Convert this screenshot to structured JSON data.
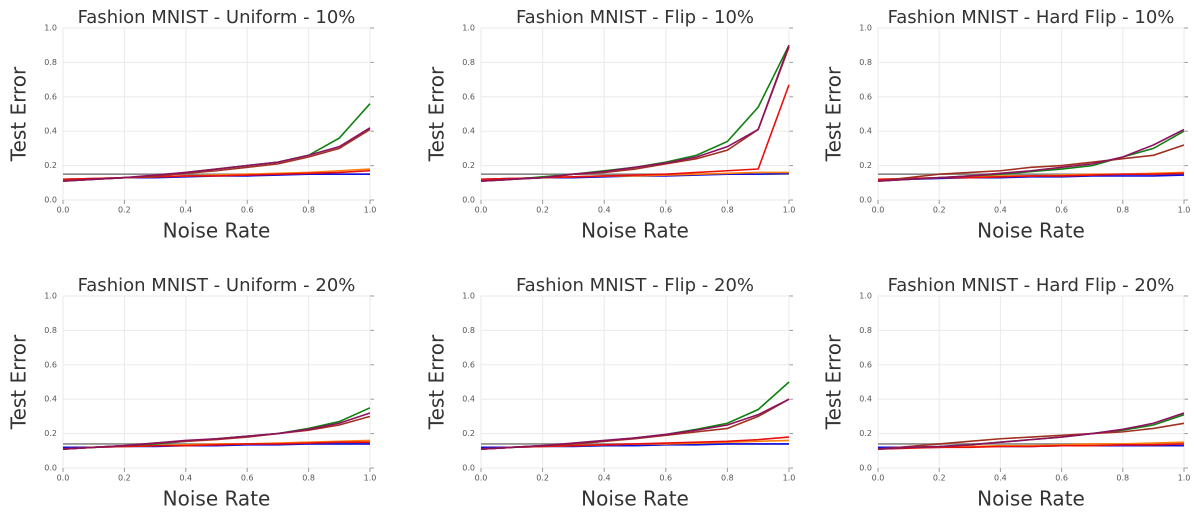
{
  "chart_data": [
    {
      "type": "line",
      "title": "Fashion MNIST - Uniform - 10%",
      "x_label": "Noise Rate",
      "y_label": "Test Error",
      "grid": true,
      "x": [
        0,
        0.1,
        0.2,
        0.3,
        0.4,
        0.5,
        0.6,
        0.7,
        0.8,
        0.9,
        1.0
      ],
      "xlim": [
        0,
        1
      ],
      "ylim": [
        0,
        1
      ],
      "xticks": [
        {
          "value": 0,
          "label": "0.0"
        },
        {
          "value": 0.2,
          "label": "0.2"
        },
        {
          "value": 0.4,
          "label": "0.4"
        },
        {
          "value": 0.6,
          "label": "0.6"
        },
        {
          "value": 0.8,
          "label": "0.8"
        },
        {
          "value": 1,
          "label": "1.0"
        }
      ],
      "yticks": [
        {
          "value": 0,
          "label": "0.0"
        },
        {
          "value": 0.2,
          "label": "0.2"
        },
        {
          "value": 0.4,
          "label": "0.4"
        },
        {
          "value": 0.6,
          "label": "0.6"
        },
        {
          "value": 0.8,
          "label": "0.8"
        },
        {
          "value": 1,
          "label": "1.0"
        }
      ],
      "series": [
        {
          "color": "#888888",
          "values": [
            0.15,
            0.15,
            0.15,
            0.15,
            0.15,
            0.15,
            0.15,
            0.15,
            0.15,
            0.15,
            0.15
          ]
        },
        {
          "color": "#1010e0",
          "values": [
            0.12,
            0.125,
            0.13,
            0.13,
            0.135,
            0.14,
            0.14,
            0.145,
            0.15,
            0.15,
            0.15
          ]
        },
        {
          "color": "#ff7f0e",
          "values": [
            0.12,
            0.125,
            0.13,
            0.135,
            0.14,
            0.145,
            0.15,
            0.155,
            0.16,
            0.17,
            0.18
          ]
        },
        {
          "color": "#e8100e",
          "values": [
            0.12,
            0.125,
            0.13,
            0.135,
            0.14,
            0.14,
            0.145,
            0.15,
            0.155,
            0.16,
            0.17
          ]
        },
        {
          "color": "#108010",
          "values": [
            0.11,
            0.12,
            0.13,
            0.14,
            0.16,
            0.18,
            0.2,
            0.22,
            0.26,
            0.36,
            0.56
          ]
        },
        {
          "color": "#a03020",
          "values": [
            0.11,
            0.12,
            0.13,
            0.14,
            0.155,
            0.17,
            0.19,
            0.21,
            0.25,
            0.3,
            0.41
          ]
        },
        {
          "color": "#901060",
          "values": [
            0.11,
            0.12,
            0.13,
            0.145,
            0.16,
            0.18,
            0.2,
            0.22,
            0.26,
            0.31,
            0.42
          ]
        }
      ]
    },
    {
      "type": "line",
      "title": "Fashion MNIST - Flip - 10%",
      "x_label": "Noise Rate",
      "y_label": "Test Error",
      "grid": true,
      "x": [
        0,
        0.1,
        0.2,
        0.3,
        0.4,
        0.5,
        0.6,
        0.7,
        0.8,
        0.9,
        1.0
      ],
      "xlim": [
        0,
        1
      ],
      "ylim": [
        0,
        1
      ],
      "xticks": [
        {
          "value": 0,
          "label": "0.0"
        },
        {
          "value": 0.2,
          "label": "0.2"
        },
        {
          "value": 0.4,
          "label": "0.4"
        },
        {
          "value": 0.6,
          "label": "0.6"
        },
        {
          "value": 0.8,
          "label": "0.8"
        },
        {
          "value": 1,
          "label": "1.0"
        }
      ],
      "yticks": [
        {
          "value": 0,
          "label": "0.0"
        },
        {
          "value": 0.2,
          "label": "0.2"
        },
        {
          "value": 0.4,
          "label": "0.4"
        },
        {
          "value": 0.6,
          "label": "0.6"
        },
        {
          "value": 0.8,
          "label": "0.8"
        },
        {
          "value": 1,
          "label": "1.0"
        }
      ],
      "series": [
        {
          "color": "#888888",
          "values": [
            0.15,
            0.15,
            0.15,
            0.15,
            0.15,
            0.15,
            0.15,
            0.15,
            0.15,
            0.15,
            0.15
          ]
        },
        {
          "color": "#1010e0",
          "values": [
            0.12,
            0.125,
            0.13,
            0.13,
            0.135,
            0.14,
            0.14,
            0.145,
            0.15,
            0.15,
            0.155
          ]
        },
        {
          "color": "#ff7f0e",
          "values": [
            0.12,
            0.125,
            0.13,
            0.135,
            0.14,
            0.14,
            0.145,
            0.15,
            0.155,
            0.16,
            0.16
          ]
        },
        {
          "color": "#e8100e",
          "values": [
            0.12,
            0.125,
            0.13,
            0.135,
            0.14,
            0.145,
            0.15,
            0.16,
            0.17,
            0.18,
            0.67
          ]
        },
        {
          "color": "#108010",
          "values": [
            0.11,
            0.12,
            0.135,
            0.15,
            0.17,
            0.19,
            0.22,
            0.26,
            0.34,
            0.54,
            0.9
          ]
        },
        {
          "color": "#a03020",
          "values": [
            0.11,
            0.12,
            0.13,
            0.15,
            0.16,
            0.18,
            0.21,
            0.24,
            0.29,
            0.41,
            0.89
          ]
        },
        {
          "color": "#901060",
          "values": [
            0.11,
            0.12,
            0.13,
            0.15,
            0.165,
            0.19,
            0.215,
            0.25,
            0.31,
            0.41,
            0.9
          ]
        }
      ]
    },
    {
      "type": "line",
      "title": "Fashion MNIST - Hard Flip - 10%",
      "x_label": "Noise Rate",
      "y_label": "Test Error",
      "grid": true,
      "x": [
        0,
        0.1,
        0.2,
        0.3,
        0.4,
        0.5,
        0.6,
        0.7,
        0.8,
        0.9,
        1.0
      ],
      "xlim": [
        0,
        1
      ],
      "ylim": [
        0,
        1
      ],
      "xticks": [
        {
          "value": 0,
          "label": "0.0"
        },
        {
          "value": 0.2,
          "label": "0.2"
        },
        {
          "value": 0.4,
          "label": "0.4"
        },
        {
          "value": 0.6,
          "label": "0.6"
        },
        {
          "value": 0.8,
          "label": "0.8"
        },
        {
          "value": 1,
          "label": "1.0"
        }
      ],
      "yticks": [
        {
          "value": 0,
          "label": "0.0"
        },
        {
          "value": 0.2,
          "label": "0.2"
        },
        {
          "value": 0.4,
          "label": "0.4"
        },
        {
          "value": 0.6,
          "label": "0.6"
        },
        {
          "value": 0.8,
          "label": "0.8"
        },
        {
          "value": 1,
          "label": "1.0"
        }
      ],
      "series": [
        {
          "color": "#888888",
          "values": [
            0.15,
            0.15,
            0.15,
            0.15,
            0.15,
            0.15,
            0.15,
            0.15,
            0.15,
            0.15,
            0.15
          ]
        },
        {
          "color": "#1010e0",
          "values": [
            0.12,
            0.12,
            0.125,
            0.13,
            0.13,
            0.135,
            0.135,
            0.14,
            0.14,
            0.14,
            0.145
          ]
        },
        {
          "color": "#ff7f0e",
          "values": [
            0.12,
            0.125,
            0.13,
            0.135,
            0.14,
            0.14,
            0.145,
            0.15,
            0.15,
            0.155,
            0.16
          ]
        },
        {
          "color": "#e8100e",
          "values": [
            0.12,
            0.125,
            0.13,
            0.13,
            0.135,
            0.14,
            0.14,
            0.145,
            0.15,
            0.15,
            0.155
          ]
        },
        {
          "color": "#108010",
          "values": [
            0.11,
            0.12,
            0.13,
            0.14,
            0.15,
            0.165,
            0.18,
            0.2,
            0.25,
            0.3,
            0.4
          ]
        },
        {
          "color": "#a03020",
          "values": [
            0.11,
            0.13,
            0.15,
            0.16,
            0.17,
            0.19,
            0.2,
            0.22,
            0.24,
            0.26,
            0.32
          ]
        },
        {
          "color": "#901060",
          "values": [
            0.11,
            0.12,
            0.13,
            0.14,
            0.155,
            0.17,
            0.19,
            0.21,
            0.25,
            0.32,
            0.41
          ]
        }
      ]
    },
    {
      "type": "line",
      "title": "Fashion MNIST - Uniform - 20%",
      "x_label": "Noise Rate",
      "y_label": "Test Error",
      "grid": true,
      "x": [
        0,
        0.1,
        0.2,
        0.3,
        0.4,
        0.5,
        0.6,
        0.7,
        0.8,
        0.9,
        1.0
      ],
      "xlim": [
        0,
        1
      ],
      "ylim": [
        0,
        1
      ],
      "xticks": [
        {
          "value": 0,
          "label": "0.0"
        },
        {
          "value": 0.2,
          "label": "0.2"
        },
        {
          "value": 0.4,
          "label": "0.4"
        },
        {
          "value": 0.6,
          "label": "0.6"
        },
        {
          "value": 0.8,
          "label": "0.8"
        },
        {
          "value": 1,
          "label": "1.0"
        }
      ],
      "yticks": [
        {
          "value": 0,
          "label": "0.0"
        },
        {
          "value": 0.2,
          "label": "0.2"
        },
        {
          "value": 0.4,
          "label": "0.4"
        },
        {
          "value": 0.6,
          "label": "0.6"
        },
        {
          "value": 0.8,
          "label": "0.8"
        },
        {
          "value": 1,
          "label": "1.0"
        }
      ],
      "series": [
        {
          "color": "#888888",
          "values": [
            0.14,
            0.14,
            0.14,
            0.14,
            0.14,
            0.14,
            0.14,
            0.14,
            0.14,
            0.14,
            0.14
          ]
        },
        {
          "color": "#1010e0",
          "values": [
            0.12,
            0.12,
            0.125,
            0.125,
            0.13,
            0.13,
            0.135,
            0.135,
            0.14,
            0.14,
            0.14
          ]
        },
        {
          "color": "#ff7f0e",
          "values": [
            0.11,
            0.12,
            0.125,
            0.13,
            0.135,
            0.14,
            0.14,
            0.145,
            0.15,
            0.155,
            0.16
          ]
        },
        {
          "color": "#e8100e",
          "values": [
            0.11,
            0.12,
            0.125,
            0.13,
            0.13,
            0.135,
            0.14,
            0.14,
            0.145,
            0.15,
            0.15
          ]
        },
        {
          "color": "#108010",
          "values": [
            0.11,
            0.12,
            0.13,
            0.14,
            0.155,
            0.17,
            0.185,
            0.2,
            0.23,
            0.27,
            0.35
          ]
        },
        {
          "color": "#a03020",
          "values": [
            0.11,
            0.12,
            0.13,
            0.145,
            0.155,
            0.165,
            0.18,
            0.2,
            0.22,
            0.25,
            0.3
          ]
        },
        {
          "color": "#901060",
          "values": [
            0.11,
            0.12,
            0.13,
            0.145,
            0.16,
            0.17,
            0.185,
            0.2,
            0.225,
            0.26,
            0.32
          ]
        }
      ]
    },
    {
      "type": "line",
      "title": "Fashion MNIST - Flip - 20%",
      "x_label": "Noise Rate",
      "y_label": "Test Error",
      "grid": true,
      "x": [
        0,
        0.1,
        0.2,
        0.3,
        0.4,
        0.5,
        0.6,
        0.7,
        0.8,
        0.9,
        1.0
      ],
      "xlim": [
        0,
        1
      ],
      "ylim": [
        0,
        1
      ],
      "xticks": [
        {
          "value": 0,
          "label": "0.0"
        },
        {
          "value": 0.2,
          "label": "0.2"
        },
        {
          "value": 0.4,
          "label": "0.4"
        },
        {
          "value": 0.6,
          "label": "0.6"
        },
        {
          "value": 0.8,
          "label": "0.8"
        },
        {
          "value": 1,
          "label": "1.0"
        }
      ],
      "yticks": [
        {
          "value": 0,
          "label": "0.0"
        },
        {
          "value": 0.2,
          "label": "0.2"
        },
        {
          "value": 0.4,
          "label": "0.4"
        },
        {
          "value": 0.6,
          "label": "0.6"
        },
        {
          "value": 0.8,
          "label": "0.8"
        },
        {
          "value": 1,
          "label": "1.0"
        }
      ],
      "series": [
        {
          "color": "#888888",
          "values": [
            0.14,
            0.14,
            0.14,
            0.14,
            0.14,
            0.14,
            0.14,
            0.14,
            0.14,
            0.14,
            0.14
          ]
        },
        {
          "color": "#1010e0",
          "values": [
            0.12,
            0.12,
            0.125,
            0.125,
            0.13,
            0.13,
            0.135,
            0.135,
            0.14,
            0.14,
            0.14
          ]
        },
        {
          "color": "#ff7f0e",
          "values": [
            0.11,
            0.12,
            0.125,
            0.13,
            0.135,
            0.14,
            0.14,
            0.145,
            0.15,
            0.155,
            0.16
          ]
        },
        {
          "color": "#e8100e",
          "values": [
            0.11,
            0.12,
            0.125,
            0.13,
            0.135,
            0.14,
            0.145,
            0.15,
            0.155,
            0.165,
            0.18
          ]
        },
        {
          "color": "#108010",
          "values": [
            0.11,
            0.12,
            0.13,
            0.14,
            0.155,
            0.175,
            0.195,
            0.225,
            0.26,
            0.34,
            0.5
          ]
        },
        {
          "color": "#a03020",
          "values": [
            0.11,
            0.12,
            0.13,
            0.14,
            0.155,
            0.17,
            0.19,
            0.21,
            0.23,
            0.3,
            0.4
          ]
        },
        {
          "color": "#901060",
          "values": [
            0.11,
            0.12,
            0.13,
            0.145,
            0.16,
            0.175,
            0.195,
            0.22,
            0.25,
            0.31,
            0.4
          ]
        }
      ]
    },
    {
      "type": "line",
      "title": "Fashion MNIST - Hard Flip - 20%",
      "x_label": "Noise Rate",
      "y_label": "Test Error",
      "grid": true,
      "x": [
        0,
        0.1,
        0.2,
        0.3,
        0.4,
        0.5,
        0.6,
        0.7,
        0.8,
        0.9,
        1.0
      ],
      "xlim": [
        0,
        1
      ],
      "ylim": [
        0,
        1
      ],
      "xticks": [
        {
          "value": 0,
          "label": "0.0"
        },
        {
          "value": 0.2,
          "label": "0.2"
        },
        {
          "value": 0.4,
          "label": "0.4"
        },
        {
          "value": 0.6,
          "label": "0.6"
        },
        {
          "value": 0.8,
          "label": "0.8"
        },
        {
          "value": 1,
          "label": "1.0"
        }
      ],
      "yticks": [
        {
          "value": 0,
          "label": "0.0"
        },
        {
          "value": 0.2,
          "label": "0.2"
        },
        {
          "value": 0.4,
          "label": "0.4"
        },
        {
          "value": 0.6,
          "label": "0.6"
        },
        {
          "value": 0.8,
          "label": "0.8"
        },
        {
          "value": 1,
          "label": "1.0"
        }
      ],
      "series": [
        {
          "color": "#888888",
          "values": [
            0.14,
            0.14,
            0.14,
            0.14,
            0.14,
            0.14,
            0.14,
            0.14,
            0.14,
            0.14,
            0.14
          ]
        },
        {
          "color": "#1010e0",
          "values": [
            0.12,
            0.12,
            0.12,
            0.125,
            0.125,
            0.125,
            0.13,
            0.13,
            0.13,
            0.13,
            0.13
          ]
        },
        {
          "color": "#ff7f0e",
          "values": [
            0.11,
            0.12,
            0.12,
            0.125,
            0.13,
            0.13,
            0.135,
            0.14,
            0.14,
            0.145,
            0.15
          ]
        },
        {
          "color": "#e8100e",
          "values": [
            0.11,
            0.115,
            0.12,
            0.12,
            0.125,
            0.125,
            0.13,
            0.13,
            0.135,
            0.135,
            0.14
          ]
        },
        {
          "color": "#108010",
          "values": [
            0.11,
            0.12,
            0.125,
            0.135,
            0.15,
            0.165,
            0.18,
            0.2,
            0.22,
            0.25,
            0.31
          ]
        },
        {
          "color": "#a03020",
          "values": [
            0.11,
            0.125,
            0.14,
            0.155,
            0.17,
            0.18,
            0.19,
            0.2,
            0.21,
            0.23,
            0.26
          ]
        },
        {
          "color": "#901060",
          "values": [
            0.11,
            0.12,
            0.125,
            0.135,
            0.15,
            0.165,
            0.18,
            0.2,
            0.225,
            0.26,
            0.32
          ]
        }
      ]
    }
  ]
}
